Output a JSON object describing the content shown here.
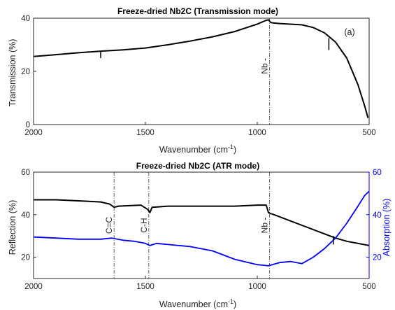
{
  "chart_data": [
    {
      "type": "line",
      "title": "Freeze-dried Nb2C (Transmission mode)",
      "panel_label": "(a)",
      "xlabel": "Wavenumber (cm⁻¹)",
      "ylabel": "Transmission (%)",
      "xlim": [
        2000,
        500
      ],
      "ylim": [
        0,
        40
      ],
      "xticks": [
        "2000",
        "1500",
        "1000",
        "500"
      ],
      "yticks": [
        "0",
        "20",
        "40"
      ],
      "series": [
        {
          "color": "#000000",
          "x": [
            2000,
            1900,
            1800,
            1700,
            1600,
            1500,
            1400,
            1300,
            1200,
            1100,
            1000,
            960,
            950,
            940,
            930,
            900,
            800,
            750,
            700,
            650,
            600,
            550,
            520,
            505
          ],
          "y": [
            25.6,
            26.3,
            27.0,
            27.6,
            28.1,
            28.8,
            30.0,
            31.4,
            33.0,
            35.0,
            37.8,
            39.2,
            39.4,
            38.4,
            38.2,
            38.0,
            37.5,
            36.5,
            34.5,
            31.0,
            25.0,
            15.0,
            7.0,
            2.5
          ]
        }
      ],
      "spikes": [
        {
          "x": 1700,
          "from": 27.6,
          "to": 25.0
        },
        {
          "x": 680,
          "from": 32.5,
          "to": 28.0
        }
      ],
      "markers": [
        {
          "x": 945,
          "label": "Nb -"
        }
      ]
    },
    {
      "type": "line",
      "title": "Freeze-dried Nb2C (ATR mode)",
      "xlabel": "Wavenumber (cm⁻¹)",
      "ylabel": "Reflection (%)",
      "y2label": "Absorption (%)",
      "xlim": [
        2000,
        500
      ],
      "ylim": [
        10,
        60
      ],
      "y2lim": [
        10,
        60
      ],
      "xticks": [
        "2000",
        "1500",
        "1000",
        "500"
      ],
      "yticks": [
        "20",
        "40",
        "60"
      ],
      "y2ticks": [
        "20",
        "40",
        "60"
      ],
      "y2color": "#0000FF",
      "series": [
        {
          "color": "#000000",
          "axis": "left",
          "x": [
            2000,
            1900,
            1800,
            1700,
            1660,
            1640,
            1620,
            1580,
            1520,
            1490,
            1480,
            1470,
            1400,
            1300,
            1200,
            1100,
            1000,
            960,
            950,
            940,
            930,
            900,
            850,
            800,
            750,
            700,
            650,
            600,
            550,
            500
          ],
          "y": [
            47.0,
            47.0,
            46.5,
            46.0,
            45.0,
            43.5,
            44.0,
            44.2,
            44.5,
            42.5,
            41.0,
            43.5,
            44.0,
            44.0,
            44.0,
            44.0,
            44.5,
            44.5,
            41.0,
            40.5,
            40.2,
            39.0,
            37.0,
            35.0,
            33.0,
            31.0,
            29.0,
            27.5,
            26.5,
            25.5
          ]
        },
        {
          "color": "#0000FF",
          "axis": "right",
          "x": [
            2000,
            1900,
            1800,
            1700,
            1650,
            1600,
            1550,
            1500,
            1480,
            1450,
            1400,
            1300,
            1200,
            1100,
            1000,
            950,
            900,
            850,
            800,
            750,
            700,
            650,
            600,
            550,
            520,
            500
          ],
          "y": [
            29.5,
            29.0,
            28.5,
            28.5,
            29.0,
            28.0,
            27.5,
            26.5,
            25.5,
            26.5,
            26.0,
            25.0,
            23.0,
            19.0,
            16.5,
            16.0,
            17.5,
            18.0,
            17.0,
            20.0,
            24.0,
            29.0,
            36.0,
            44.0,
            49.0,
            51.0
          ]
        }
      ],
      "spikes": [
        {
          "x": 660,
          "from": 30.0,
          "to": 26.0
        }
      ],
      "markers": [
        {
          "x": 1640,
          "label": "C=C"
        },
        {
          "x": 1485,
          "label": "C-H"
        },
        {
          "x": 945,
          "label": "Nb -"
        }
      ]
    }
  ]
}
